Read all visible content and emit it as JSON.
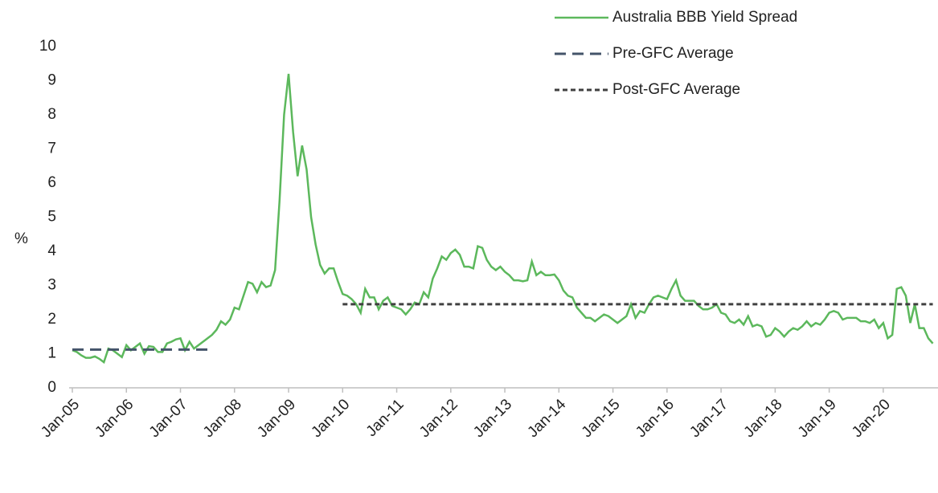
{
  "chart_data": {
    "type": "line",
    "y_label": "%",
    "categories": [
      "Jan-05",
      null,
      null,
      null,
      null,
      null,
      null,
      null,
      null,
      null,
      null,
      null,
      "Jan-06",
      null,
      null,
      null,
      null,
      null,
      null,
      null,
      null,
      null,
      null,
      null,
      "Jan-07",
      null,
      null,
      null,
      null,
      null,
      null,
      null,
      null,
      null,
      null,
      null,
      "Jan-08",
      null,
      null,
      null,
      null,
      null,
      null,
      null,
      null,
      null,
      null,
      null,
      "Jan-09",
      null,
      null,
      null,
      null,
      null,
      null,
      null,
      null,
      null,
      null,
      null,
      "Jan-10",
      null,
      null,
      null,
      null,
      null,
      null,
      null,
      null,
      null,
      null,
      null,
      "Jan-11",
      null,
      null,
      null,
      null,
      null,
      null,
      null,
      null,
      null,
      null,
      null,
      "Jan-12",
      null,
      null,
      null,
      null,
      null,
      null,
      null,
      null,
      null,
      null,
      null,
      "Jan-13",
      null,
      null,
      null,
      null,
      null,
      null,
      null,
      null,
      null,
      null,
      null,
      "Jan-14",
      null,
      null,
      null,
      null,
      null,
      null,
      null,
      null,
      null,
      null,
      null,
      "Jan-15",
      null,
      null,
      null,
      null,
      null,
      null,
      null,
      null,
      null,
      null,
      null,
      "Jan-16",
      null,
      null,
      null,
      null,
      null,
      null,
      null,
      null,
      null,
      null,
      null,
      "Jan-17",
      null,
      null,
      null,
      null,
      null,
      null,
      null,
      null,
      null,
      null,
      null,
      "Jan-18",
      null,
      null,
      null,
      null,
      null,
      null,
      null,
      null,
      null,
      null,
      null,
      "Jan-19",
      null,
      null,
      null,
      null,
      null,
      null,
      null,
      null,
      null,
      null,
      null,
      "Jan-20",
      null,
      null,
      null,
      null,
      null,
      null,
      null,
      null,
      null,
      null,
      null
    ],
    "series": [
      {
        "name": "Australia BBB Yield Spread",
        "color": "#5cb85c",
        "dash": "solid",
        "values": [
          1.1,
          1.05,
          0.95,
          0.88,
          0.88,
          0.92,
          0.85,
          0.75,
          1.15,
          1.1,
          1.0,
          0.9,
          1.25,
          1.1,
          1.2,
          1.3,
          1.0,
          1.22,
          1.2,
          1.05,
          1.05,
          1.3,
          1.35,
          1.42,
          1.45,
          1.1,
          1.35,
          1.15,
          1.25,
          1.35,
          1.45,
          1.55,
          1.7,
          1.95,
          1.85,
          2.0,
          2.35,
          2.3,
          2.7,
          3.1,
          3.05,
          2.8,
          3.1,
          2.95,
          3.0,
          3.45,
          5.5,
          8.0,
          9.2,
          7.5,
          6.2,
          7.1,
          6.4,
          5.0,
          4.2,
          3.6,
          3.35,
          3.5,
          3.5,
          3.1,
          2.75,
          2.7,
          2.6,
          2.45,
          2.2,
          2.9,
          2.65,
          2.65,
          2.3,
          2.55,
          2.65,
          2.4,
          2.35,
          2.3,
          2.15,
          2.3,
          2.5,
          2.45,
          2.8,
          2.65,
          3.2,
          3.5,
          3.85,
          3.75,
          3.95,
          4.05,
          3.9,
          3.55,
          3.55,
          3.5,
          4.15,
          4.1,
          3.75,
          3.55,
          3.45,
          3.55,
          3.4,
          3.3,
          3.15,
          3.15,
          3.12,
          3.15,
          3.7,
          3.3,
          3.4,
          3.3,
          3.3,
          3.32,
          3.15,
          2.85,
          2.7,
          2.65,
          2.35,
          2.2,
          2.05,
          2.05,
          1.95,
          2.05,
          2.15,
          2.1,
          2.0,
          1.9,
          2.0,
          2.1,
          2.45,
          2.05,
          2.25,
          2.2,
          2.45,
          2.65,
          2.7,
          2.65,
          2.6,
          2.9,
          3.15,
          2.7,
          2.55,
          2.55,
          2.55,
          2.4,
          2.3,
          2.3,
          2.35,
          2.45,
          2.2,
          2.15,
          1.95,
          1.9,
          2.0,
          1.85,
          2.1,
          1.8,
          1.85,
          1.8,
          1.5,
          1.55,
          1.75,
          1.65,
          1.5,
          1.65,
          1.75,
          1.7,
          1.8,
          1.95,
          1.8,
          1.9,
          1.85,
          2.0,
          2.2,
          2.25,
          2.2,
          2.0,
          2.05,
          2.05,
          2.05,
          1.95,
          1.95,
          1.9,
          2.0,
          1.75,
          1.9,
          1.45,
          1.55,
          2.9,
          2.95,
          2.7,
          1.9,
          2.45,
          1.75,
          1.75,
          1.45,
          1.3
        ]
      },
      {
        "name": "Pre-GFC Average",
        "color": "#44546a",
        "dash": "long",
        "values": [
          1.12,
          1.12,
          1.12,
          1.12,
          1.12,
          1.12,
          1.12,
          1.12,
          1.12,
          1.12,
          1.12,
          1.12,
          1.12,
          1.12,
          1.12,
          1.12,
          1.12,
          1.12,
          1.12,
          1.12,
          1.12,
          1.12,
          1.12,
          1.12,
          1.12,
          1.12,
          1.12,
          1.12,
          1.12,
          1.12,
          1.12,
          null,
          null,
          null,
          null,
          null,
          null,
          null,
          null,
          null,
          null,
          null,
          null,
          null,
          null,
          null,
          null,
          null,
          null,
          null,
          null,
          null,
          null,
          null,
          null,
          null,
          null,
          null,
          null,
          null,
          null,
          null,
          null,
          null,
          null,
          null,
          null,
          null,
          null,
          null,
          null,
          null,
          null,
          null,
          null,
          null,
          null,
          null,
          null,
          null,
          null,
          null,
          null,
          null,
          null,
          null,
          null,
          null,
          null,
          null,
          null,
          null,
          null,
          null,
          null,
          null,
          null,
          null,
          null,
          null,
          null,
          null,
          null,
          null,
          null,
          null,
          null,
          null,
          null,
          null,
          null,
          null,
          null,
          null,
          null,
          null,
          null,
          null,
          null,
          null,
          null,
          null,
          null,
          null,
          null,
          null,
          null,
          null,
          null,
          null,
          null,
          null,
          null,
          null,
          null,
          null,
          null,
          null,
          null,
          null,
          null,
          null,
          null,
          null,
          null,
          null,
          null,
          null,
          null,
          null,
          null,
          null,
          null,
          null,
          null,
          null,
          null,
          null,
          null,
          null,
          null,
          null,
          null,
          null,
          null,
          null,
          null,
          null,
          null,
          null,
          null,
          null,
          null,
          null,
          null,
          null,
          null,
          null,
          null,
          null,
          null,
          null,
          null,
          null,
          null,
          null,
          null,
          null,
          null,
          null,
          null,
          null
        ]
      },
      {
        "name": "Post-GFC Average",
        "color": "#404040",
        "dash": "short",
        "values": [
          null,
          null,
          null,
          null,
          null,
          null,
          null,
          null,
          null,
          null,
          null,
          null,
          null,
          null,
          null,
          null,
          null,
          null,
          null,
          null,
          null,
          null,
          null,
          null,
          null,
          null,
          null,
          null,
          null,
          null,
          null,
          null,
          null,
          null,
          null,
          null,
          null,
          null,
          null,
          null,
          null,
          null,
          null,
          null,
          null,
          null,
          null,
          null,
          null,
          null,
          null,
          null,
          null,
          null,
          null,
          null,
          null,
          null,
          null,
          null,
          2.45,
          2.45,
          2.45,
          2.45,
          2.45,
          2.45,
          2.45,
          2.45,
          2.45,
          2.45,
          2.45,
          2.45,
          2.45,
          2.45,
          2.45,
          2.45,
          2.45,
          2.45,
          2.45,
          2.45,
          2.45,
          2.45,
          2.45,
          2.45,
          2.45,
          2.45,
          2.45,
          2.45,
          2.45,
          2.45,
          2.45,
          2.45,
          2.45,
          2.45,
          2.45,
          2.45,
          2.45,
          2.45,
          2.45,
          2.45,
          2.45,
          2.45,
          2.45,
          2.45,
          2.45,
          2.45,
          2.45,
          2.45,
          2.45,
          2.45,
          2.45,
          2.45,
          2.45,
          2.45,
          2.45,
          2.45,
          2.45,
          2.45,
          2.45,
          2.45,
          2.45,
          2.45,
          2.45,
          2.45,
          2.45,
          2.45,
          2.45,
          2.45,
          2.45,
          2.45,
          2.45,
          2.45,
          2.45,
          2.45,
          2.45,
          2.45,
          2.45,
          2.45,
          2.45,
          2.45,
          2.45,
          2.45,
          2.45,
          2.45,
          2.45,
          2.45,
          2.45,
          2.45,
          2.45,
          2.45,
          2.45,
          2.45,
          2.45,
          2.45,
          2.45,
          2.45,
          2.45,
          2.45,
          2.45,
          2.45,
          2.45,
          2.45,
          2.45,
          2.45,
          2.45,
          2.45,
          2.45,
          2.45,
          2.45,
          2.45,
          2.45,
          2.45,
          2.45,
          2.45,
          2.45,
          2.45,
          2.45,
          2.45,
          2.45,
          2.45,
          2.45,
          2.45,
          2.45,
          2.45,
          2.45,
          2.45,
          2.45,
          2.45,
          2.45,
          2.45,
          2.45,
          2.45
        ]
      }
    ],
    "ylim": [
      0,
      10
    ],
    "yticks": [
      0,
      1,
      2,
      3,
      4,
      5,
      6,
      7,
      8,
      9,
      10
    ],
    "grid": false,
    "legend": "top-right"
  }
}
